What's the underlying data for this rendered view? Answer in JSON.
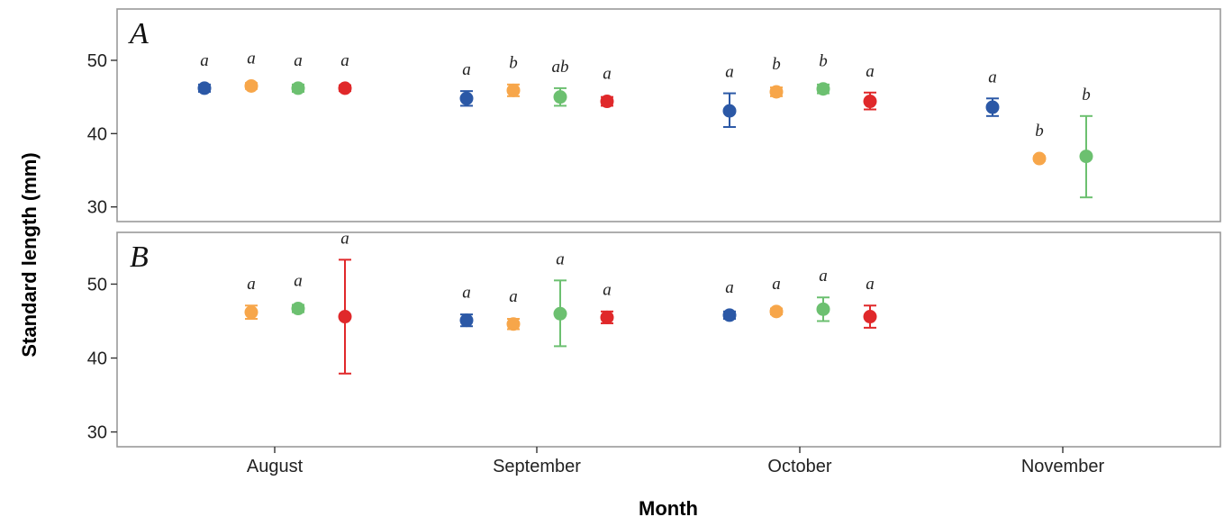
{
  "chart_data": {
    "type": "scatter",
    "ylabel": "Standard length (mm)",
    "xlabel": "Month",
    "categories": [
      "August",
      "September",
      "October",
      "November"
    ],
    "ylim": [
      28,
      57
    ],
    "yticks": [
      30,
      40,
      50
    ],
    "series_colors": [
      "#2b58a6",
      "#f7a64a",
      "#6cc070",
      "#e0282a"
    ],
    "panels": [
      {
        "label": "A",
        "groups": [
          {
            "month": "August",
            "points": [
              {
                "series": 0,
                "mean": 46.2,
                "lo": 45.7,
                "hi": 46.7,
                "sig": "a"
              },
              {
                "series": 1,
                "mean": 46.5,
                "lo": 46.1,
                "hi": 46.9,
                "sig": "a"
              },
              {
                "series": 2,
                "mean": 46.2,
                "lo": 45.7,
                "hi": 46.7,
                "sig": "a"
              },
              {
                "series": 3,
                "mean": 46.2,
                "lo": 45.8,
                "hi": 46.6,
                "sig": "a"
              }
            ]
          },
          {
            "month": "September",
            "points": [
              {
                "series": 0,
                "mean": 44.8,
                "lo": 43.8,
                "hi": 45.8,
                "sig": "a"
              },
              {
                "series": 1,
                "mean": 45.9,
                "lo": 45.1,
                "hi": 46.7,
                "sig": "b"
              },
              {
                "series": 2,
                "mean": 45.0,
                "lo": 43.8,
                "hi": 46.2,
                "sig": "ab"
              },
              {
                "series": 3,
                "mean": 44.4,
                "lo": 43.8,
                "hi": 45.0,
                "sig": "a"
              }
            ]
          },
          {
            "month": "October",
            "points": [
              {
                "series": 0,
                "mean": 43.1,
                "lo": 40.9,
                "hi": 45.5,
                "sig": "a"
              },
              {
                "series": 1,
                "mean": 45.7,
                "lo": 45.1,
                "hi": 46.3,
                "sig": "b"
              },
              {
                "series": 2,
                "mean": 46.1,
                "lo": 45.5,
                "hi": 46.7,
                "sig": "b"
              },
              {
                "series": 3,
                "mean": 44.4,
                "lo": 43.3,
                "hi": 45.6,
                "sig": "a"
              }
            ]
          },
          {
            "month": "November",
            "points": [
              {
                "series": 0,
                "mean": 43.6,
                "lo": 42.4,
                "hi": 44.8,
                "sig": "a"
              },
              {
                "series": 1,
                "mean": 36.6,
                "lo": 36.3,
                "hi": 36.9,
                "sig": "b"
              },
              {
                "series": 2,
                "mean": 36.9,
                "lo": 31.3,
                "hi": 42.4,
                "sig": "b"
              }
            ]
          }
        ]
      },
      {
        "label": "B",
        "groups": [
          {
            "month": "August",
            "points": [
              {
                "series": 1,
                "mean": 46.2,
                "lo": 45.3,
                "hi": 47.1,
                "sig": "a"
              },
              {
                "series": 2,
                "mean": 46.7,
                "lo": 46.2,
                "hi": 47.2,
                "sig": "a"
              },
              {
                "series": 3,
                "mean": 45.6,
                "lo": 37.9,
                "hi": 53.3,
                "sig": "a"
              }
            ]
          },
          {
            "month": "September",
            "points": [
              {
                "series": 0,
                "mean": 45.1,
                "lo": 44.3,
                "hi": 45.9,
                "sig": "a"
              },
              {
                "series": 1,
                "mean": 44.6,
                "lo": 43.9,
                "hi": 45.3,
                "sig": "a"
              },
              {
                "series": 2,
                "mean": 46.0,
                "lo": 41.6,
                "hi": 50.5,
                "sig": "a"
              },
              {
                "series": 3,
                "mean": 45.5,
                "lo": 44.7,
                "hi": 46.3,
                "sig": "a"
              }
            ]
          },
          {
            "month": "October",
            "points": [
              {
                "series": 0,
                "mean": 45.8,
                "lo": 45.3,
                "hi": 46.3,
                "sig": "a"
              },
              {
                "series": 1,
                "mean": 46.3,
                "lo": 45.9,
                "hi": 46.7,
                "sig": "a"
              },
              {
                "series": 2,
                "mean": 46.6,
                "lo": 45.0,
                "hi": 48.2,
                "sig": "a"
              },
              {
                "series": 3,
                "mean": 45.6,
                "lo": 44.1,
                "hi": 47.1,
                "sig": "a"
              }
            ]
          }
        ]
      }
    ]
  }
}
